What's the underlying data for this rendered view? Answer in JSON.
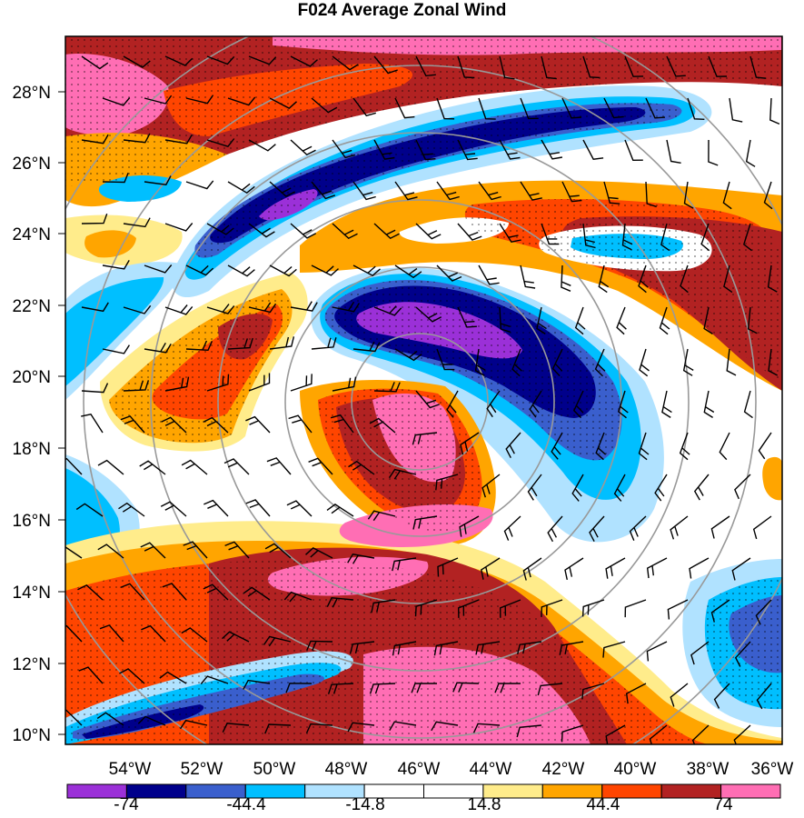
{
  "map": {
    "title": "F024 Average Zonal Wind",
    "lat_labels": [
      "28°N",
      "26°N",
      "24°N",
      "22°N",
      "20°N",
      "18°N",
      "16°N",
      "14°N",
      "12°N",
      "10°N"
    ],
    "lon_labels": [
      "54°W",
      "52°W",
      "50°W",
      "48°W",
      "46°W",
      "44°W",
      "42°W",
      "40°W",
      "38°W",
      "36°W"
    ],
    "colorbar": {
      "labels": [
        "-74",
        "-44.4",
        "-14.8",
        "14.8",
        "44.4",
        "74"
      ],
      "colors": [
        "#9b30d8",
        "#00008b",
        "#3a5fcd",
        "#00bfff",
        "#b0e2ff",
        "#ffffff",
        "#ffffff",
        "#ffec8b",
        "#ffa500",
        "#ff4500",
        "#b22222",
        "#ff6eb4"
      ]
    },
    "colors": {
      "range_ring": "#999999",
      "barb": "#000000",
      "frame": "#000000"
    }
  }
}
